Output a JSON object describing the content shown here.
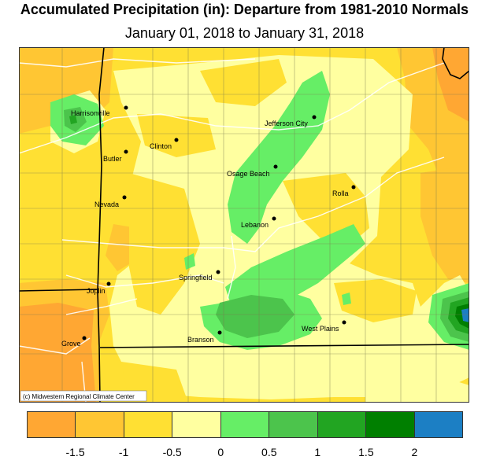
{
  "title": "Accumulated Precipitation (in): Departure from 1981-2010 Normals",
  "subtitle": "January 01, 2018 to January 31, 2018",
  "credit": "(c) Midwestern Regional Climate Center",
  "cities": [
    {
      "name": "Harrisonville"
    },
    {
      "name": "Clinton"
    },
    {
      "name": "Butler"
    },
    {
      "name": "Jefferson City"
    },
    {
      "name": "Osage Beach"
    },
    {
      "name": "Rolla"
    },
    {
      "name": "Nevada"
    },
    {
      "name": "Lebanon"
    },
    {
      "name": "Springfield"
    },
    {
      "name": "Joplin"
    },
    {
      "name": "West Plains"
    },
    {
      "name": "Branson"
    },
    {
      "name": "Grove"
    }
  ],
  "legend": {
    "colors": [
      "#FFA733",
      "#FFC633",
      "#FFE033",
      "#FFFFA0",
      "#66EE66",
      "#4CC44C",
      "#22A522",
      "#007F00",
      "#1C7FC4"
    ],
    "labels": [
      "-1.5",
      "-1",
      "-0.5",
      "0",
      "0.5",
      "1",
      "1.5",
      "2"
    ]
  }
}
